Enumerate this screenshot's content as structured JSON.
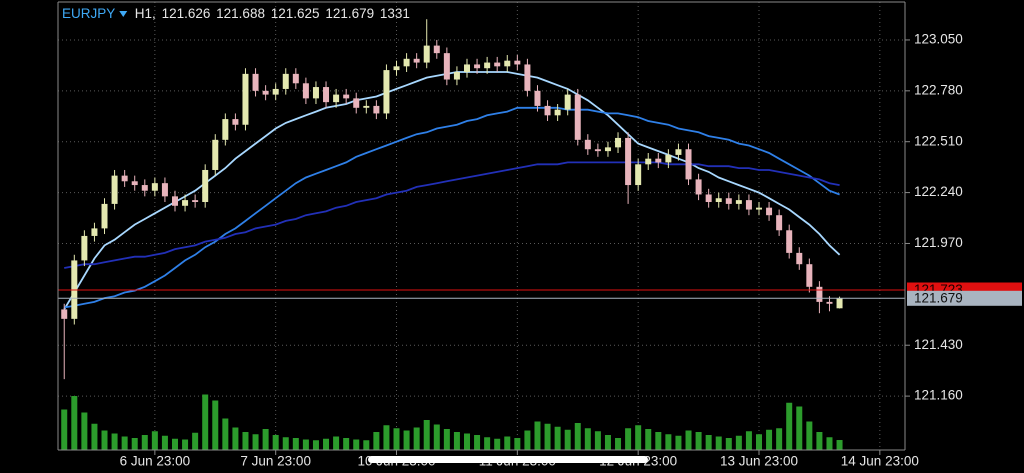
{
  "chart_data": {
    "type": "candlestick",
    "title": "EURJPY",
    "timeframe": "H1,",
    "categories": [
      null,
      null,
      null,
      null,
      null,
      null,
      null,
      null,
      null,
      "6 Jun 23:00",
      null,
      null,
      null,
      null,
      null,
      null,
      null,
      null,
      null,
      null,
      null,
      "7 Jun 23:00",
      null,
      null,
      null,
      null,
      null,
      null,
      null,
      null,
      null,
      null,
      null,
      "10 Jun 23:00",
      null,
      null,
      null,
      null,
      null,
      null,
      null,
      null,
      null,
      null,
      null,
      "11 Jun 23:00",
      null,
      null,
      null,
      null,
      null,
      null,
      null,
      null,
      null,
      null,
      null,
      "12 Jun 23:00",
      null,
      null,
      null,
      null,
      null,
      null,
      null,
      null,
      null,
      null,
      null,
      "13 Jun 23:00",
      null,
      null,
      null,
      null,
      null,
      null,
      null,
      null,
      null,
      null,
      null,
      "14 Jun 23:00",
      null,
      null
    ],
    "open": [
      121.62,
      121.57,
      121.88,
      122.01,
      122.05,
      122.18,
      122.33,
      122.3,
      122.28,
      122.25,
      122.29,
      122.22,
      122.17,
      122.2,
      122.19,
      122.36,
      122.52,
      122.63,
      122.6,
      122.87,
      122.78,
      122.76,
      122.79,
      122.87,
      122.82,
      122.74,
      122.8,
      122.72,
      122.76,
      122.74,
      122.69,
      122.7,
      122.66,
      122.89,
      122.91,
      122.95,
      122.93,
      123.02,
      122.98,
      122.84,
      122.88,
      122.92,
      122.9,
      122.93,
      122.91,
      122.94,
      122.92,
      122.78,
      122.7,
      122.65,
      122.68,
      122.76,
      122.52,
      122.47,
      122.46,
      122.48,
      122.53,
      122.28,
      122.39,
      122.42,
      122.4,
      122.44,
      122.47,
      122.31,
      122.23,
      122.19,
      122.21,
      122.18,
      122.2,
      122.15,
      122.16,
      122.12,
      122.04,
      121.92,
      121.86,
      121.74,
      121.66,
      121.626,
      null,
      null,
      null,
      null,
      null,
      null
    ],
    "high": [
      121.65,
      121.91,
      122.04,
      122.08,
      122.21,
      122.36,
      122.36,
      122.33,
      122.31,
      122.32,
      122.32,
      122.25,
      122.23,
      122.23,
      122.39,
      122.55,
      122.66,
      122.66,
      122.9,
      122.9,
      122.81,
      122.82,
      122.9,
      122.9,
      122.85,
      122.83,
      122.83,
      122.79,
      122.79,
      122.77,
      122.73,
      122.73,
      122.92,
      122.94,
      122.98,
      122.98,
      123.16,
      123.05,
      123.01,
      122.91,
      122.95,
      122.95,
      122.96,
      122.96,
      122.97,
      122.97,
      122.95,
      122.81,
      122.73,
      122.71,
      122.79,
      122.79,
      122.55,
      122.5,
      122.51,
      122.56,
      122.56,
      122.42,
      122.45,
      122.45,
      122.47,
      122.5,
      122.5,
      122.34,
      122.26,
      122.24,
      122.24,
      122.23,
      122.23,
      122.19,
      122.19,
      122.15,
      122.07,
      121.95,
      121.89,
      121.77,
      121.69,
      121.688,
      null,
      null,
      null,
      null,
      null,
      null
    ],
    "low": [
      121.25,
      121.54,
      121.85,
      121.98,
      122.02,
      122.15,
      122.27,
      122.25,
      122.22,
      122.22,
      122.19,
      122.14,
      122.14,
      122.16,
      122.16,
      122.33,
      122.49,
      122.57,
      122.57,
      122.75,
      122.73,
      122.73,
      122.76,
      122.79,
      122.71,
      122.71,
      122.69,
      122.69,
      122.71,
      122.66,
      122.66,
      122.63,
      122.63,
      122.86,
      122.88,
      122.9,
      122.9,
      122.95,
      122.81,
      122.81,
      122.85,
      122.87,
      122.87,
      122.88,
      122.88,
      122.89,
      122.75,
      122.67,
      122.62,
      122.62,
      122.65,
      122.49,
      122.44,
      122.43,
      122.43,
      122.45,
      122.18,
      122.25,
      122.36,
      122.37,
      122.37,
      122.41,
      122.28,
      122.2,
      122.16,
      122.16,
      122.15,
      122.15,
      122.12,
      122.12,
      122.09,
      122.01,
      121.89,
      121.83,
      121.71,
      121.6,
      121.61,
      121.625,
      null,
      null,
      null,
      null,
      null,
      null
    ],
    "close": [
      121.57,
      121.88,
      122.01,
      122.05,
      122.18,
      122.33,
      122.3,
      122.28,
      122.25,
      122.29,
      122.22,
      122.17,
      122.2,
      122.19,
      122.36,
      122.52,
      122.63,
      122.6,
      122.87,
      122.78,
      122.76,
      122.79,
      122.87,
      122.82,
      122.74,
      122.8,
      122.72,
      122.76,
      122.74,
      122.69,
      122.7,
      122.66,
      122.89,
      122.91,
      122.95,
      122.93,
      123.02,
      122.98,
      122.84,
      122.88,
      122.92,
      122.9,
      122.93,
      122.91,
      122.94,
      122.92,
      122.78,
      122.7,
      122.65,
      122.68,
      122.76,
      122.52,
      122.47,
      122.46,
      122.48,
      122.53,
      122.28,
      122.39,
      122.42,
      122.4,
      122.44,
      122.47,
      122.31,
      122.23,
      122.19,
      122.21,
      122.18,
      122.2,
      122.15,
      122.16,
      122.12,
      122.04,
      121.92,
      121.86,
      121.74,
      121.66,
      121.65,
      121.679,
      null,
      null,
      null,
      null,
      null,
      null
    ],
    "volume": [
      5400,
      7200,
      5000,
      3500,
      2600,
      2200,
      1800,
      1600,
      2000,
      2500,
      1900,
      1500,
      1400,
      2300,
      7400,
      6600,
      4200,
      3000,
      2400,
      2100,
      2800,
      2000,
      1700,
      1600,
      1400,
      1300,
      1500,
      1800,
      1600,
      1400,
      1300,
      2400,
      3300,
      2900,
      2600,
      3000,
      4000,
      3400,
      2800,
      2400,
      2200,
      2000,
      1700,
      1500,
      1800,
      1600,
      2600,
      3800,
      3500,
      3100,
      2700,
      3600,
      2900,
      2500,
      2000,
      1600,
      2900,
      3300,
      2800,
      2400,
      2100,
      1900,
      2600,
      2400,
      2000,
      1800,
      1600,
      1900,
      2500,
      2100,
      2700,
      2900,
      6300,
      5800,
      3800,
      2400,
      1700,
      1331,
      null,
      null,
      null,
      null,
      null,
      null
    ],
    "up_color": "#e4e8b0",
    "down_color": "#e8b4bc",
    "volume_color": "#2c9c2c",
    "lines": [
      {
        "color": "#a8d8ff",
        "values": [
          121.62,
          121.71,
          121.8,
          121.89,
          121.96,
          121.99,
          122.03,
          122.07,
          122.1,
          122.13,
          122.16,
          122.19,
          122.22,
          122.25,
          122.29,
          122.33,
          122.37,
          122.42,
          122.46,
          122.5,
          122.54,
          122.58,
          122.61,
          122.63,
          122.65,
          122.67,
          122.69,
          122.7,
          122.71,
          122.73,
          122.74,
          122.75,
          122.77,
          122.79,
          122.81,
          122.83,
          122.85,
          122.86,
          122.87,
          122.88,
          122.88,
          122.88,
          122.88,
          122.88,
          122.88,
          122.87,
          122.86,
          122.85,
          122.83,
          122.81,
          122.79,
          122.76,
          122.73,
          122.69,
          122.65,
          122.6,
          122.55,
          122.5,
          122.48,
          122.46,
          122.44,
          122.42,
          122.4,
          122.37,
          122.35,
          122.32,
          122.3,
          122.28,
          122.26,
          122.24,
          122.21,
          122.18,
          122.15,
          122.11,
          122.07,
          122.02,
          121.96,
          121.91,
          null,
          null,
          null,
          null,
          null,
          null
        ]
      },
      {
        "color": "#2f80e8",
        "values": [
          121.63,
          121.64,
          121.65,
          121.66,
          121.68,
          121.69,
          121.71,
          121.72,
          121.74,
          121.77,
          121.8,
          121.84,
          121.88,
          121.91,
          121.95,
          121.98,
          122.02,
          122.05,
          122.09,
          122.13,
          122.17,
          122.21,
          122.25,
          122.29,
          122.32,
          122.34,
          122.36,
          122.38,
          122.4,
          122.43,
          122.45,
          122.47,
          122.49,
          122.51,
          122.53,
          122.55,
          122.56,
          122.58,
          122.59,
          122.6,
          122.62,
          122.63,
          122.65,
          122.66,
          122.67,
          122.69,
          122.69,
          122.69,
          122.69,
          122.69,
          122.68,
          122.68,
          122.68,
          122.67,
          122.66,
          122.66,
          122.65,
          122.64,
          122.62,
          122.61,
          122.6,
          122.58,
          122.57,
          122.56,
          122.54,
          122.53,
          122.52,
          122.5,
          122.49,
          122.47,
          122.45,
          122.42,
          122.39,
          122.36,
          122.33,
          122.29,
          122.25,
          122.23,
          null,
          null,
          null,
          null,
          null,
          null
        ]
      },
      {
        "color": "#2230b8",
        "values": [
          121.84,
          121.85,
          121.86,
          121.86,
          121.87,
          121.88,
          121.89,
          121.9,
          121.9,
          121.91,
          121.92,
          121.94,
          121.95,
          121.96,
          121.98,
          121.99,
          122.0,
          122.02,
          122.03,
          122.05,
          122.06,
          122.07,
          122.09,
          122.1,
          122.12,
          122.13,
          122.14,
          122.16,
          122.17,
          122.19,
          122.2,
          122.21,
          122.23,
          122.24,
          122.25,
          122.27,
          122.28,
          122.29,
          122.3,
          122.31,
          122.32,
          122.33,
          122.34,
          122.35,
          122.36,
          122.37,
          122.38,
          122.39,
          122.39,
          122.39,
          122.4,
          122.4,
          122.4,
          122.4,
          122.4,
          122.4,
          122.4,
          122.4,
          122.4,
          122.4,
          122.39,
          122.39,
          122.39,
          122.39,
          122.38,
          122.38,
          122.38,
          122.37,
          122.37,
          122.36,
          122.36,
          122.35,
          122.34,
          122.33,
          122.32,
          122.31,
          122.29,
          122.28,
          null,
          null,
          null,
          null,
          null,
          null
        ]
      }
    ],
    "price_lines": [
      {
        "value": 121.723,
        "color": "#e01010",
        "label_color": "#1a0000"
      },
      {
        "value": 121.679,
        "color": "#a9b4c0",
        "label_color": "#111111"
      }
    ],
    "ylim": [
      120.874,
      123.262
    ],
    "yticks": [
      {
        "value": 123.05,
        "label": "123.050"
      },
      {
        "value": 122.78,
        "label": "122.780"
      },
      {
        "value": 122.51,
        "label": "122.510"
      },
      {
        "value": 122.24,
        "label": "122.240"
      },
      {
        "value": 121.97,
        "label": "121.970"
      },
      {
        "value": 121.43,
        "label": "121.430"
      },
      {
        "value": 121.16,
        "label": "121.160"
      }
    ],
    "y2lim": [
      0,
      10000
    ],
    "grid": true
  }
}
